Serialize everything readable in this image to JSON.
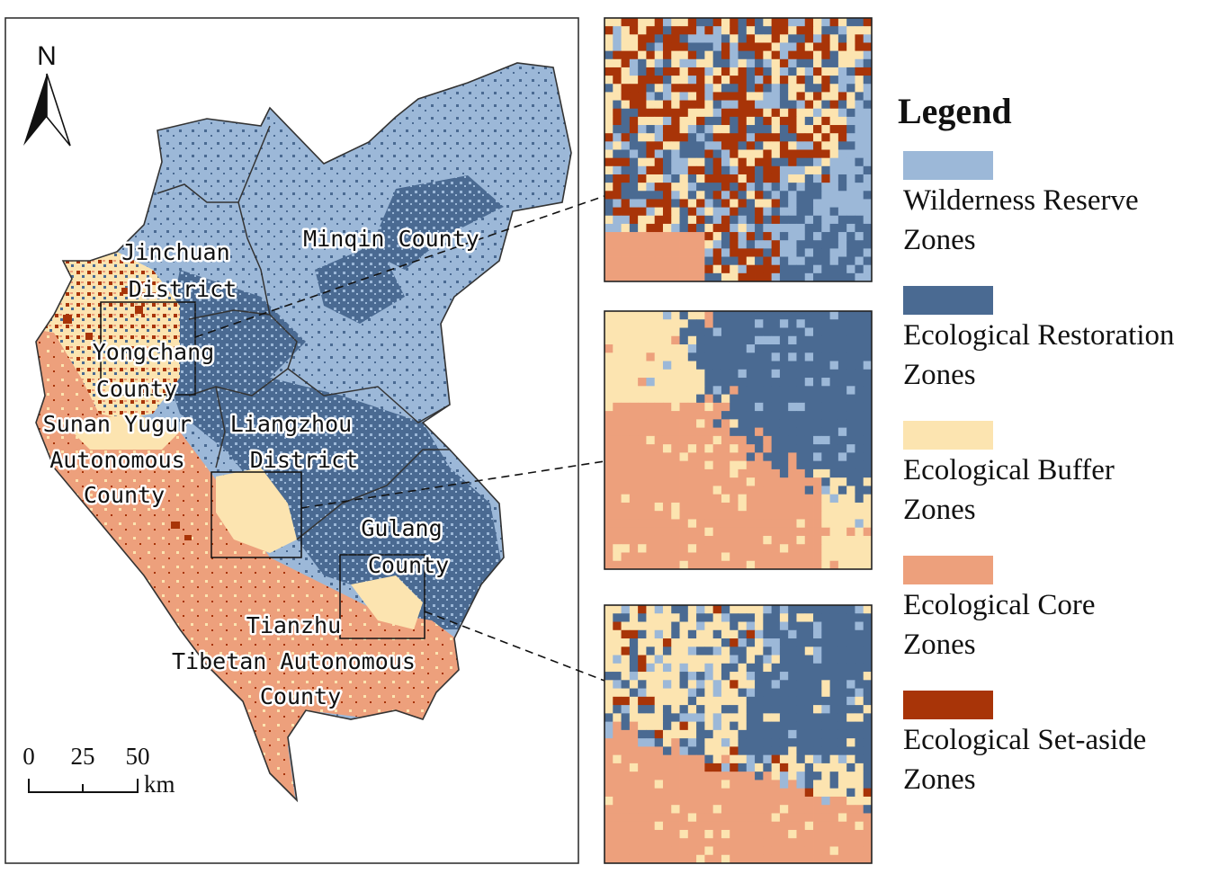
{
  "colors": {
    "wilderness_reserve": "#9cb8d8",
    "ecological_restoration": "#4a6a92",
    "ecological_buffer": "#fce4b0",
    "ecological_core": "#eda07c",
    "ecological_set_aside": "#a83408",
    "frame": "#333333"
  },
  "map": {
    "north_label": "N",
    "regions": [
      {
        "id": "jinchuan",
        "lines": [
          "Jinchuan",
          "District"
        ]
      },
      {
        "id": "minqin",
        "lines": [
          "Minqin County"
        ]
      },
      {
        "id": "yongchang",
        "lines": [
          "Yongchang",
          "County"
        ]
      },
      {
        "id": "sunan",
        "lines": [
          "Sunan Yugur",
          "Autonomous",
          "County"
        ]
      },
      {
        "id": "liangzhou",
        "lines": [
          "Liangzhou",
          "District"
        ]
      },
      {
        "id": "gulang",
        "lines": [
          "Gulang",
          "County"
        ]
      },
      {
        "id": "tianzhu",
        "lines": [
          "Tianzhu",
          "Tibetan Autonomous",
          "County"
        ]
      }
    ],
    "scale_bar": {
      "ticks": [
        "0",
        "25",
        "50"
      ],
      "unit": "km"
    }
  },
  "legend": {
    "title": "Legend",
    "items": [
      {
        "key": "wilderness_reserve",
        "lines": [
          "Wilderness Reserve",
          "Zones"
        ]
      },
      {
        "key": "ecological_restoration",
        "lines": [
          "Ecological Restoration",
          "Zones"
        ]
      },
      {
        "key": "ecological_buffer",
        "lines": [
          "Ecological Buffer",
          "Zones"
        ]
      },
      {
        "key": "ecological_core",
        "lines": [
          "Ecological Core",
          "Zones"
        ]
      },
      {
        "key": "ecological_set_aside",
        "lines": [
          "Ecological Set-aside",
          "Zones"
        ]
      }
    ]
  },
  "insets": [
    {
      "id": "inset-1",
      "dominant": "mixed with buffer, set-aside and restoration"
    },
    {
      "id": "inset-2",
      "dominant": "buffer and core with restoration"
    },
    {
      "id": "inset-3",
      "dominant": "buffer, core and restoration"
    }
  ]
}
